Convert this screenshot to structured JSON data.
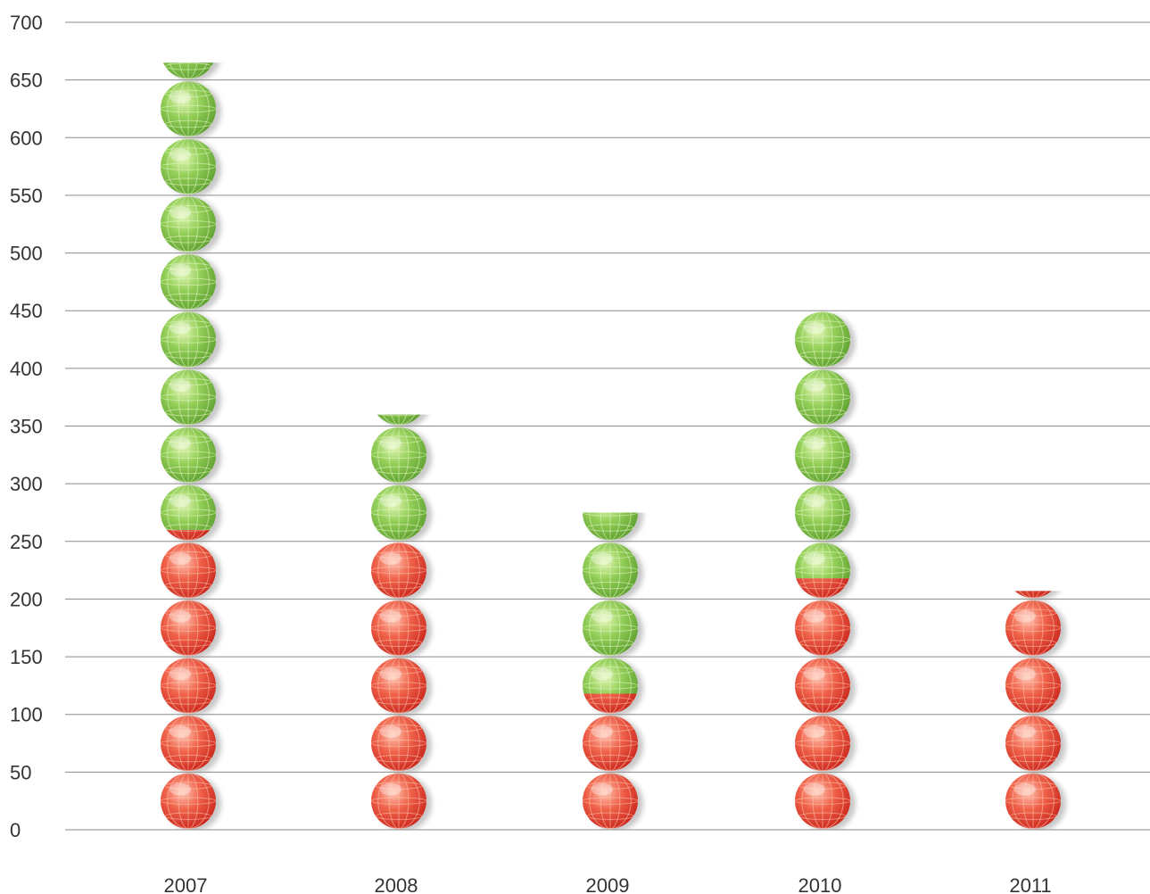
{
  "chart_data": {
    "type": "bar",
    "style": "pictograph-stacked-globes",
    "title": "",
    "xlabel": "",
    "ylabel": "",
    "ylim": [
      0,
      700
    ],
    "y_ticks": [
      0,
      50,
      100,
      150,
      200,
      250,
      300,
      350,
      400,
      450,
      500,
      550,
      600,
      650,
      700
    ],
    "categories": [
      "2007",
      "2008",
      "2009",
      "2010",
      "2011"
    ],
    "series": [
      {
        "color": "#e8463a",
        "values": [
          260,
          250,
          118,
          218,
          207
        ]
      },
      {
        "color": "#7cc242",
        "values": [
          405,
          110,
          157,
          232,
          0
        ]
      }
    ],
    "grid": true,
    "legend": "none"
  }
}
